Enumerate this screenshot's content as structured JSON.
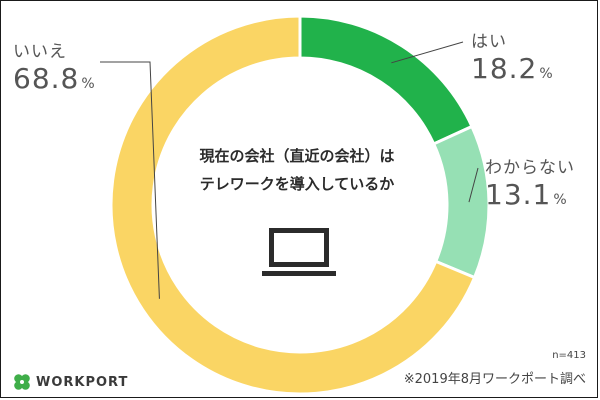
{
  "chart_data": {
    "type": "pie",
    "question_lines": [
      "現在の会社（直近の会社）は",
      "テレワークを導入しているか"
    ],
    "categories": [
      "はい",
      "わからない",
      "いいえ"
    ],
    "values": [
      18.2,
      13.1,
      68.8
    ],
    "percent_symbol": "%",
    "colors": [
      "#21b24b",
      "#96e0b4",
      "#fad564"
    ],
    "style": "donut"
  },
  "footer": {
    "sample_size": "n=413",
    "source": "※2019年8月ワークポート調べ"
  },
  "brand": {
    "name": "WORKPORT",
    "logo_icon": "four-leaf-clover-icon",
    "logo_color": "#3fae49"
  },
  "icons": {
    "center": "laptop-icon"
  }
}
